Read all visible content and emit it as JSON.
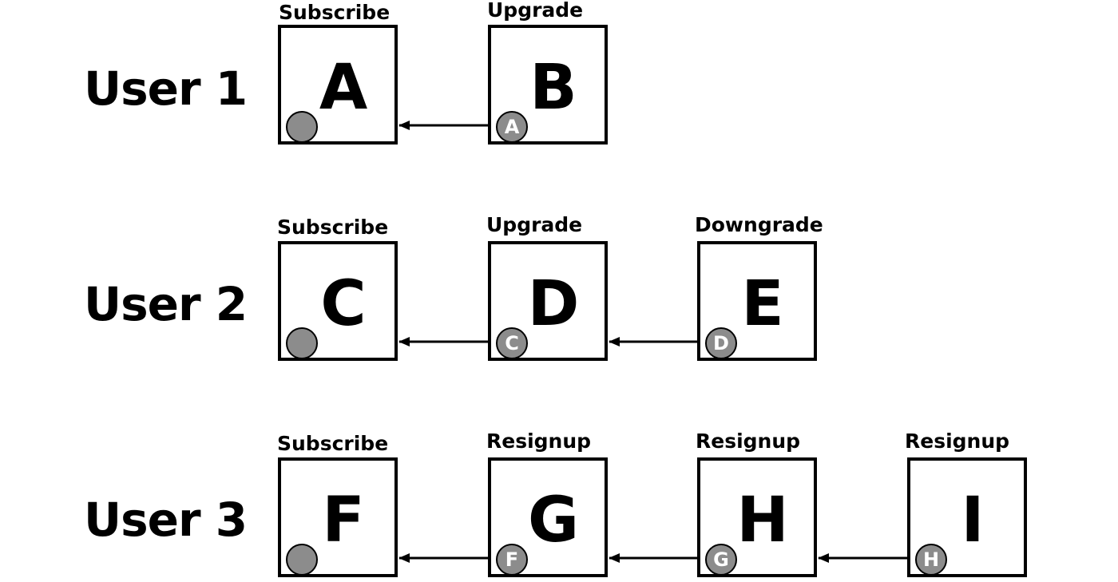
{
  "rows": [
    {
      "label": "User 1",
      "nodes": [
        {
          "caption": "Subscribe",
          "letter": "A",
          "ref": ""
        },
        {
          "caption": "Upgrade",
          "letter": "B",
          "ref": "A"
        }
      ]
    },
    {
      "label": "User 2",
      "nodes": [
        {
          "caption": "Subscribe",
          "letter": "C",
          "ref": ""
        },
        {
          "caption": "Upgrade",
          "letter": "D",
          "ref": "C"
        },
        {
          "caption": "Downgrade",
          "letter": "E",
          "ref": "D"
        }
      ]
    },
    {
      "label": "User 3",
      "nodes": [
        {
          "caption": "Subscribe",
          "letter": "F",
          "ref": ""
        },
        {
          "caption": "Resignup",
          "letter": "G",
          "ref": "F"
        },
        {
          "caption": "Resignup",
          "letter": "H",
          "ref": "G"
        },
        {
          "caption": "Resignup",
          "letter": "I",
          "ref": "H"
        }
      ]
    }
  ]
}
